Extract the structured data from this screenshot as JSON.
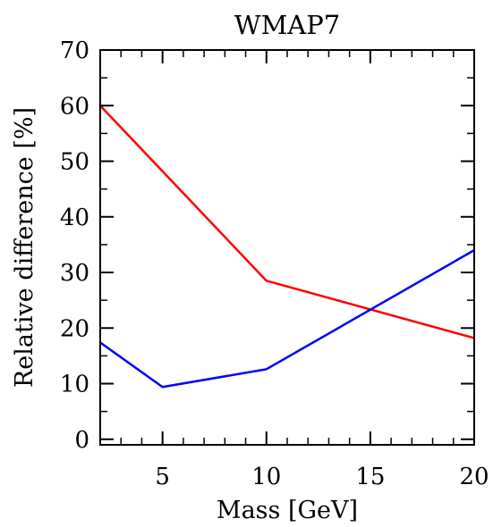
{
  "chart_data": {
    "type": "line",
    "title": "WMAP7",
    "xlabel": "Mass [GeV]",
    "ylabel": "Relative difference [%]",
    "xlim": [
      2,
      20
    ],
    "ylim": [
      -1,
      70
    ],
    "x_ticks": [
      5,
      10,
      15,
      20
    ],
    "y_ticks": [
      0,
      10,
      20,
      30,
      40,
      50,
      60,
      70
    ],
    "x_minor_ticks": [
      3,
      4,
      6,
      7,
      8,
      9,
      11,
      12,
      13,
      14,
      16,
      17,
      18,
      19
    ],
    "y_minor_ticks": [
      5,
      15,
      25,
      35,
      45,
      55,
      65
    ],
    "grid": false,
    "legend": "none",
    "series": [
      {
        "color": "#ff0000",
        "x": [
          2,
          10,
          20
        ],
        "y": [
          60,
          28.5,
          18.2
        ]
      },
      {
        "color": "#0000ff",
        "x": [
          2,
          5,
          10,
          20
        ],
        "y": [
          17.4,
          9.4,
          12.6,
          34
        ]
      }
    ]
  }
}
